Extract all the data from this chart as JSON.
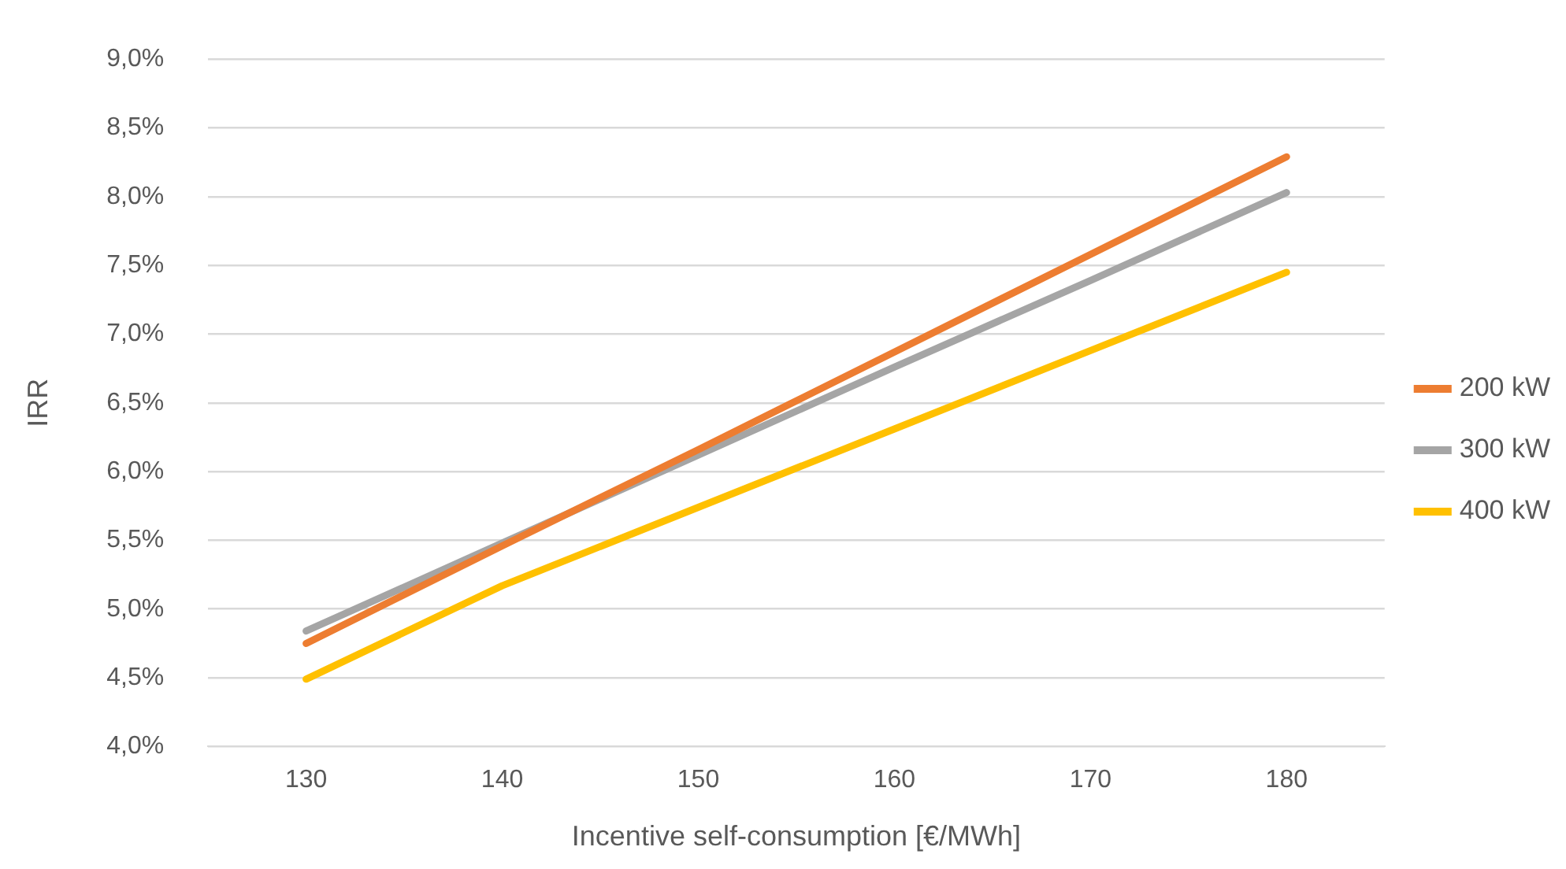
{
  "chart_data": {
    "type": "line",
    "xlabel": "Incentive self-consumption [€/MWh]",
    "ylabel": "IRR",
    "categories": [
      "130",
      "140",
      "150",
      "160",
      "170",
      "180"
    ],
    "series": [
      {
        "name": "200 kW",
        "color": "#ed7d31",
        "values": [
          4.75,
          5.46,
          6.16,
          6.87,
          7.58,
          8.29
        ]
      },
      {
        "name": "300 kW",
        "color": "#a5a5a5",
        "values": [
          4.84,
          5.48,
          6.12,
          6.76,
          7.39,
          8.03
        ]
      },
      {
        "name": "400 kW",
        "color": "#ffc000",
        "values": [
          4.49,
          5.17,
          5.74,
          6.31,
          6.88,
          7.45
        ]
      }
    ],
    "ylim": [
      4,
      9
    ],
    "yticks": [
      {
        "value": 4,
        "label": "4,0%"
      },
      {
        "value": 4.5,
        "label": "4,5%"
      },
      {
        "value": 5,
        "label": "5,0%"
      },
      {
        "value": 5.5,
        "label": "5,5%"
      },
      {
        "value": 6,
        "label": "6,0%"
      },
      {
        "value": 6.5,
        "label": "6,5%"
      },
      {
        "value": 7,
        "label": "7,0%"
      },
      {
        "value": 7.5,
        "label": "7,5%"
      },
      {
        "value": 8,
        "label": "8,0%"
      },
      {
        "value": 8.5,
        "label": "8,5%"
      },
      {
        "value": 9,
        "label": "9,0%"
      }
    ],
    "grid": "y",
    "legend": "right",
    "marker": "none",
    "line_style": "solid"
  }
}
